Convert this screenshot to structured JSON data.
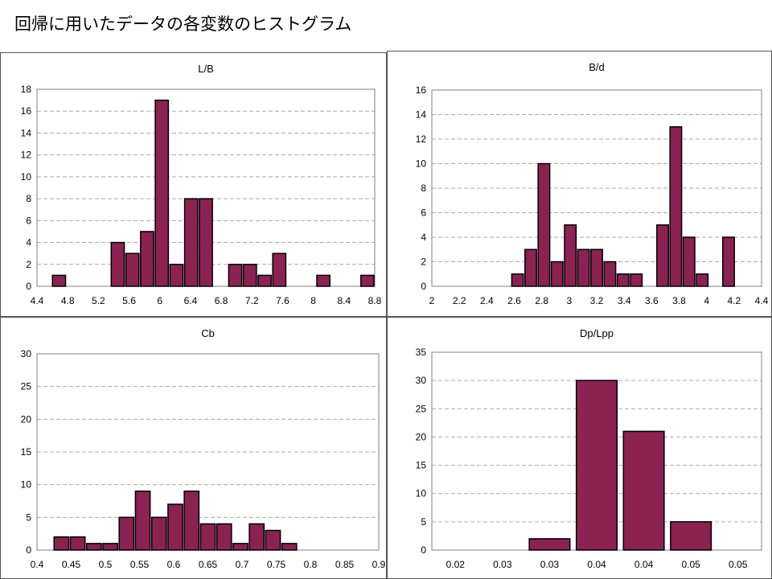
{
  "page_title": "回帰に用いたデータの各変数のヒストグラム",
  "colors": {
    "bar_fill": "#8B2252",
    "bar_stroke": "#000000",
    "grid": "#aaaaaa",
    "axis": "#808080"
  },
  "chart_data": [
    {
      "type": "bar",
      "title": "L/B",
      "xlabel": "",
      "ylabel": "",
      "ylim": [
        0,
        18
      ],
      "y_ticks": [
        "0",
        "2",
        "4",
        "6",
        "8",
        "10",
        "12",
        "14",
        "16",
        "18"
      ],
      "x_tick_labels": [
        "4.4",
        "4.8",
        "5.2",
        "5.6",
        "6",
        "6.4",
        "6.8",
        "7.2",
        "7.6",
        "8",
        "8.4",
        "8.8"
      ],
      "categories": [
        "4.4",
        "4.6",
        "4.8",
        "5.0",
        "5.2",
        "5.4",
        "5.6",
        "5.8",
        "6.0",
        "6.2",
        "6.4",
        "6.6",
        "6.8",
        "7.0",
        "7.2",
        "7.4",
        "7.6",
        "7.8",
        "8.0",
        "8.2",
        "8.4",
        "8.6",
        "8.8"
      ],
      "values": [
        0,
        1,
        0,
        0,
        0,
        4,
        3,
        5,
        17,
        2,
        8,
        8,
        0,
        2,
        2,
        1,
        3,
        0,
        0,
        1,
        0,
        0,
        1
      ],
      "grid": true
    },
    {
      "type": "bar",
      "title": "B/d",
      "xlabel": "",
      "ylabel": "",
      "ylim": [
        0,
        16
      ],
      "y_ticks": [
        "0",
        "2",
        "4",
        "6",
        "8",
        "10",
        "12",
        "14",
        "16"
      ],
      "x_tick_labels": [
        "2",
        "2.2",
        "2.4",
        "2.6",
        "2.8",
        "3",
        "3.2",
        "3.4",
        "3.6",
        "3.8",
        "4",
        "4.2",
        "4.4"
      ],
      "categories": [
        "2.0",
        "2.1",
        "2.2",
        "2.3",
        "2.4",
        "2.5",
        "2.6",
        "2.7",
        "2.8",
        "2.9",
        "3.0",
        "3.1",
        "3.2",
        "3.3",
        "3.4",
        "3.5",
        "3.6",
        "3.7",
        "3.8",
        "3.9",
        "4.0",
        "4.1",
        "4.2",
        "4.3",
        "4.4"
      ],
      "values": [
        0,
        0,
        0,
        0,
        0,
        0,
        1,
        3,
        10,
        2,
        5,
        3,
        3,
        2,
        1,
        1,
        0,
        5,
        13,
        4,
        1,
        0,
        4,
        0,
        0
      ],
      "grid": true
    },
    {
      "type": "bar",
      "title": "Cb",
      "xlabel": "",
      "ylabel": "",
      "ylim": [
        0,
        30
      ],
      "y_ticks": [
        "0",
        "5",
        "10",
        "15",
        "20",
        "25",
        "30"
      ],
      "x_tick_labels": [
        "0.4",
        "0.45",
        "0.5",
        "0.55",
        "0.6",
        "0.65",
        "0.7",
        "0.75",
        "0.8",
        "0.85",
        "0.9"
      ],
      "categories": [
        "0.4",
        "0.425",
        "0.45",
        "0.475",
        "0.5",
        "0.525",
        "0.55",
        "0.575",
        "0.6",
        "0.625",
        "0.65",
        "0.675",
        "0.7",
        "0.725",
        "0.75",
        "0.775",
        "0.8",
        "0.825",
        "0.85",
        "0.875",
        "0.9"
      ],
      "values": [
        0,
        2,
        2,
        1,
        1,
        5,
        9,
        5,
        7,
        9,
        4,
        4,
        1,
        4,
        3,
        1,
        0,
        0,
        0,
        0,
        0
      ],
      "grid": true
    },
    {
      "type": "bar",
      "title": "Dp/Lpp",
      "xlabel": "",
      "ylabel": "",
      "ylim": [
        0,
        35
      ],
      "y_ticks": [
        "0",
        "5",
        "10",
        "15",
        "20",
        "25",
        "30",
        "35"
      ],
      "x_tick_labels": [
        "0.02",
        "0.03",
        "0.03",
        "0.04",
        "0.04",
        "0.05",
        "0.05"
      ],
      "categories": [
        "0.02",
        "0.03",
        "0.03",
        "0.04",
        "0.04",
        "0.05",
        "0.05"
      ],
      "values": [
        0,
        0,
        2,
        30,
        21,
        5,
        0
      ],
      "grid": true
    }
  ]
}
